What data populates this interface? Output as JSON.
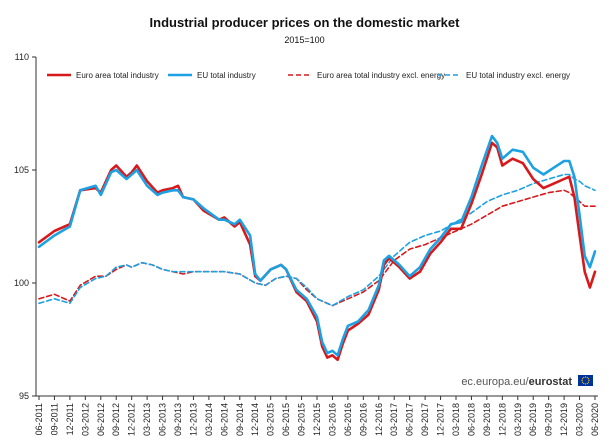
{
  "chart_data": {
    "type": "line",
    "title": "Industrial producer prices on the domestic market",
    "subtitle": "2015=100",
    "ylim": [
      95,
      110
    ],
    "y_ticks": [
      95,
      100,
      105,
      110
    ],
    "x_start": "06-2011",
    "x_end": "06-2020",
    "x_ticks": [
      "06-2011",
      "09-2011",
      "12-2011",
      "03-2012",
      "06-2012",
      "09-2012",
      "12-2012",
      "03-2013",
      "06-2013",
      "09-2013",
      "12-2013",
      "03-2014",
      "06-2014",
      "09-2014",
      "12-2014",
      "03-2015",
      "06-2015",
      "09-2015",
      "12-2015",
      "03-2016",
      "06-2016",
      "09-2016",
      "12-2016",
      "03-2017",
      "06-2017",
      "09-2017",
      "12-2017",
      "03-2018",
      "06-2018",
      "09-2018",
      "12-2018",
      "03-2019",
      "06-2019",
      "09-2019",
      "12-2019",
      "03-2020",
      "06-2020"
    ],
    "legend_position": "top",
    "grid": false,
    "series": [
      {
        "name": "Euro area total industry",
        "color": "#d7191c",
        "style": "solid",
        "points": [
          [
            "06-2011",
            101.8
          ],
          [
            "09-2011",
            102.3
          ],
          [
            "12-2011",
            102.6
          ],
          [
            "02-2012",
            104.1
          ],
          [
            "05-2012",
            104.2
          ],
          [
            "06-2012",
            104.0
          ],
          [
            "08-2012",
            105.0
          ],
          [
            "09-2012",
            105.2
          ],
          [
            "11-2012",
            104.7
          ],
          [
            "12-2012",
            104.9
          ],
          [
            "01-2013",
            105.2
          ],
          [
            "03-2013",
            104.5
          ],
          [
            "05-2013",
            104.0
          ],
          [
            "06-2013",
            104.1
          ],
          [
            "08-2013",
            104.2
          ],
          [
            "09-2013",
            104.3
          ],
          [
            "10-2013",
            103.8
          ],
          [
            "12-2013",
            103.7
          ],
          [
            "02-2014",
            103.2
          ],
          [
            "05-2014",
            102.8
          ],
          [
            "06-2014",
            102.9
          ],
          [
            "08-2014",
            102.5
          ],
          [
            "09-2014",
            102.7
          ],
          [
            "11-2014",
            101.7
          ],
          [
            "12-2014",
            100.3
          ],
          [
            "01-2015",
            100.1
          ],
          [
            "03-2015",
            100.6
          ],
          [
            "05-2015",
            100.8
          ],
          [
            "06-2015",
            100.6
          ],
          [
            "08-2015",
            99.6
          ],
          [
            "10-2015",
            99.2
          ],
          [
            "12-2015",
            98.3
          ],
          [
            "01-2016",
            97.2
          ],
          [
            "02-2016",
            96.7
          ],
          [
            "03-2016",
            96.8
          ],
          [
            "04-2016",
            96.6
          ],
          [
            "05-2016",
            97.3
          ],
          [
            "06-2016",
            97.9
          ],
          [
            "08-2016",
            98.2
          ],
          [
            "10-2016",
            98.6
          ],
          [
            "12-2016",
            99.7
          ],
          [
            "01-2017",
            100.8
          ],
          [
            "02-2017",
            101.1
          ],
          [
            "04-2017",
            100.7
          ],
          [
            "06-2017",
            100.2
          ],
          [
            "08-2017",
            100.5
          ],
          [
            "10-2017",
            101.3
          ],
          [
            "12-2017",
            101.8
          ],
          [
            "02-2018",
            102.4
          ],
          [
            "04-2018",
            102.4
          ],
          [
            "06-2018",
            103.5
          ],
          [
            "08-2018",
            104.8
          ],
          [
            "10-2018",
            106.2
          ],
          [
            "11-2018",
            106.0
          ],
          [
            "12-2018",
            105.2
          ],
          [
            "02-2019",
            105.5
          ],
          [
            "04-2019",
            105.3
          ],
          [
            "06-2019",
            104.6
          ],
          [
            "08-2019",
            104.2
          ],
          [
            "10-2019",
            104.4
          ],
          [
            "12-2019",
            104.6
          ],
          [
            "01-2020",
            104.7
          ],
          [
            "02-2020",
            103.8
          ],
          [
            "03-2020",
            102.1
          ],
          [
            "04-2020",
            100.5
          ],
          [
            "05-2020",
            99.8
          ],
          [
            "06-2020",
            100.5
          ]
        ]
      },
      {
        "name": "EU total industry",
        "color": "#1da1e2",
        "style": "solid",
        "points": [
          [
            "06-2011",
            101.6
          ],
          [
            "09-2011",
            102.1
          ],
          [
            "12-2011",
            102.5
          ],
          [
            "02-2012",
            104.1
          ],
          [
            "05-2012",
            104.3
          ],
          [
            "06-2012",
            103.9
          ],
          [
            "08-2012",
            104.9
          ],
          [
            "09-2012",
            105.0
          ],
          [
            "11-2012",
            104.6
          ],
          [
            "12-2012",
            104.8
          ],
          [
            "01-2013",
            105.0
          ],
          [
            "03-2013",
            104.3
          ],
          [
            "05-2013",
            103.9
          ],
          [
            "06-2013",
            104.0
          ],
          [
            "08-2013",
            104.1
          ],
          [
            "09-2013",
            104.1
          ],
          [
            "10-2013",
            103.8
          ],
          [
            "12-2013",
            103.7
          ],
          [
            "02-2014",
            103.3
          ],
          [
            "05-2014",
            102.8
          ],
          [
            "06-2014",
            102.8
          ],
          [
            "08-2014",
            102.6
          ],
          [
            "09-2014",
            102.8
          ],
          [
            "11-2014",
            102.1
          ],
          [
            "12-2014",
            100.4
          ],
          [
            "01-2015",
            100.1
          ],
          [
            "03-2015",
            100.6
          ],
          [
            "05-2015",
            100.8
          ],
          [
            "06-2015",
            100.6
          ],
          [
            "08-2015",
            99.7
          ],
          [
            "10-2015",
            99.3
          ],
          [
            "12-2015",
            98.5
          ],
          [
            "01-2016",
            97.4
          ],
          [
            "02-2016",
            96.9
          ],
          [
            "03-2016",
            97.0
          ],
          [
            "04-2016",
            96.8
          ],
          [
            "05-2016",
            97.5
          ],
          [
            "06-2016",
            98.1
          ],
          [
            "08-2016",
            98.3
          ],
          [
            "10-2016",
            98.8
          ],
          [
            "12-2016",
            99.9
          ],
          [
            "01-2017",
            101.0
          ],
          [
            "02-2017",
            101.2
          ],
          [
            "04-2017",
            100.8
          ],
          [
            "06-2017",
            100.3
          ],
          [
            "08-2017",
            100.7
          ],
          [
            "10-2017",
            101.5
          ],
          [
            "12-2017",
            102.0
          ],
          [
            "02-2018",
            102.6
          ],
          [
            "04-2018",
            102.7
          ],
          [
            "06-2018",
            103.8
          ],
          [
            "08-2018",
            105.2
          ],
          [
            "10-2018",
            106.5
          ],
          [
            "11-2018",
            106.2
          ],
          [
            "12-2018",
            105.5
          ],
          [
            "02-2019",
            105.9
          ],
          [
            "04-2019",
            105.8
          ],
          [
            "06-2019",
            105.1
          ],
          [
            "08-2019",
            104.8
          ],
          [
            "10-2019",
            105.1
          ],
          [
            "12-2019",
            105.4
          ],
          [
            "01-2020",
            105.4
          ],
          [
            "02-2020",
            104.7
          ],
          [
            "03-2020",
            103.0
          ],
          [
            "04-2020",
            101.2
          ],
          [
            "05-2020",
            100.7
          ],
          [
            "06-2020",
            101.4
          ]
        ]
      },
      {
        "name": "Euro area total industry excl. energy",
        "color": "#d7191c",
        "style": "dashed",
        "points": [
          [
            "06-2011",
            99.3
          ],
          [
            "09-2011",
            99.5
          ],
          [
            "12-2011",
            99.2
          ],
          [
            "02-2012",
            99.9
          ],
          [
            "05-2012",
            100.3
          ],
          [
            "07-2012",
            100.3
          ],
          [
            "09-2012",
            100.6
          ],
          [
            "11-2012",
            100.8
          ],
          [
            "12-2012",
            100.7
          ],
          [
            "02-2013",
            100.9
          ],
          [
            "04-2013",
            100.8
          ],
          [
            "06-2013",
            100.6
          ],
          [
            "08-2013",
            100.5
          ],
          [
            "10-2013",
            100.4
          ],
          [
            "12-2013",
            100.5
          ],
          [
            "03-2014",
            100.5
          ],
          [
            "06-2014",
            100.5
          ],
          [
            "09-2014",
            100.4
          ],
          [
            "12-2014",
            100.0
          ],
          [
            "02-2015",
            99.9
          ],
          [
            "04-2015",
            100.2
          ],
          [
            "06-2015",
            100.3
          ],
          [
            "08-2015",
            100.2
          ],
          [
            "10-2015",
            99.7
          ],
          [
            "12-2015",
            99.3
          ],
          [
            "03-2016",
            99.0
          ],
          [
            "06-2016",
            99.3
          ],
          [
            "09-2016",
            99.6
          ],
          [
            "12-2016",
            100.1
          ],
          [
            "03-2017",
            101.0
          ],
          [
            "06-2017",
            101.5
          ],
          [
            "09-2017",
            101.7
          ],
          [
            "12-2017",
            102.0
          ],
          [
            "03-2018",
            102.3
          ],
          [
            "06-2018",
            102.6
          ],
          [
            "09-2018",
            103.0
          ],
          [
            "12-2018",
            103.4
          ],
          [
            "03-2019",
            103.6
          ],
          [
            "06-2019",
            103.8
          ],
          [
            "09-2019",
            104.0
          ],
          [
            "12-2019",
            104.1
          ],
          [
            "01-2020",
            104.0
          ],
          [
            "02-2020",
            103.8
          ],
          [
            "03-2020",
            103.6
          ],
          [
            "04-2020",
            103.4
          ],
          [
            "06-2020",
            103.4
          ]
        ]
      },
      {
        "name": "EU total industry excl. energy",
        "color": "#1da1e2",
        "style": "dashed",
        "points": [
          [
            "06-2011",
            99.1
          ],
          [
            "09-2011",
            99.3
          ],
          [
            "12-2011",
            99.1
          ],
          [
            "02-2012",
            99.8
          ],
          [
            "05-2012",
            100.2
          ],
          [
            "07-2012",
            100.3
          ],
          [
            "09-2012",
            100.7
          ],
          [
            "11-2012",
            100.8
          ],
          [
            "12-2012",
            100.7
          ],
          [
            "02-2013",
            100.9
          ],
          [
            "04-2013",
            100.8
          ],
          [
            "06-2013",
            100.6
          ],
          [
            "08-2013",
            100.5
          ],
          [
            "10-2013",
            100.5
          ],
          [
            "12-2013",
            100.5
          ],
          [
            "03-2014",
            100.5
          ],
          [
            "06-2014",
            100.5
          ],
          [
            "09-2014",
            100.4
          ],
          [
            "12-2014",
            100.0
          ],
          [
            "02-2015",
            99.9
          ],
          [
            "04-2015",
            100.2
          ],
          [
            "06-2015",
            100.3
          ],
          [
            "08-2015",
            100.2
          ],
          [
            "10-2015",
            99.8
          ],
          [
            "12-2015",
            99.3
          ],
          [
            "03-2016",
            99.0
          ],
          [
            "06-2016",
            99.4
          ],
          [
            "09-2016",
            99.7
          ],
          [
            "12-2016",
            100.3
          ],
          [
            "03-2017",
            101.2
          ],
          [
            "06-2017",
            101.8
          ],
          [
            "09-2017",
            102.1
          ],
          [
            "12-2017",
            102.3
          ],
          [
            "03-2018",
            102.7
          ],
          [
            "06-2018",
            103.1
          ],
          [
            "09-2018",
            103.6
          ],
          [
            "12-2018",
            103.9
          ],
          [
            "03-2019",
            104.1
          ],
          [
            "06-2019",
            104.4
          ],
          [
            "09-2019",
            104.6
          ],
          [
            "12-2019",
            104.8
          ],
          [
            "01-2020",
            104.8
          ],
          [
            "02-2020",
            104.6
          ],
          [
            "03-2020",
            104.5
          ],
          [
            "04-2020",
            104.3
          ],
          [
            "06-2020",
            104.1
          ]
        ]
      }
    ]
  },
  "source": {
    "prefix": "ec.europa.eu/",
    "brand": "eurostat"
  },
  "logo": {
    "icon": "eu-flag-icon",
    "background": "#003399",
    "stars": "#ffcc00"
  }
}
